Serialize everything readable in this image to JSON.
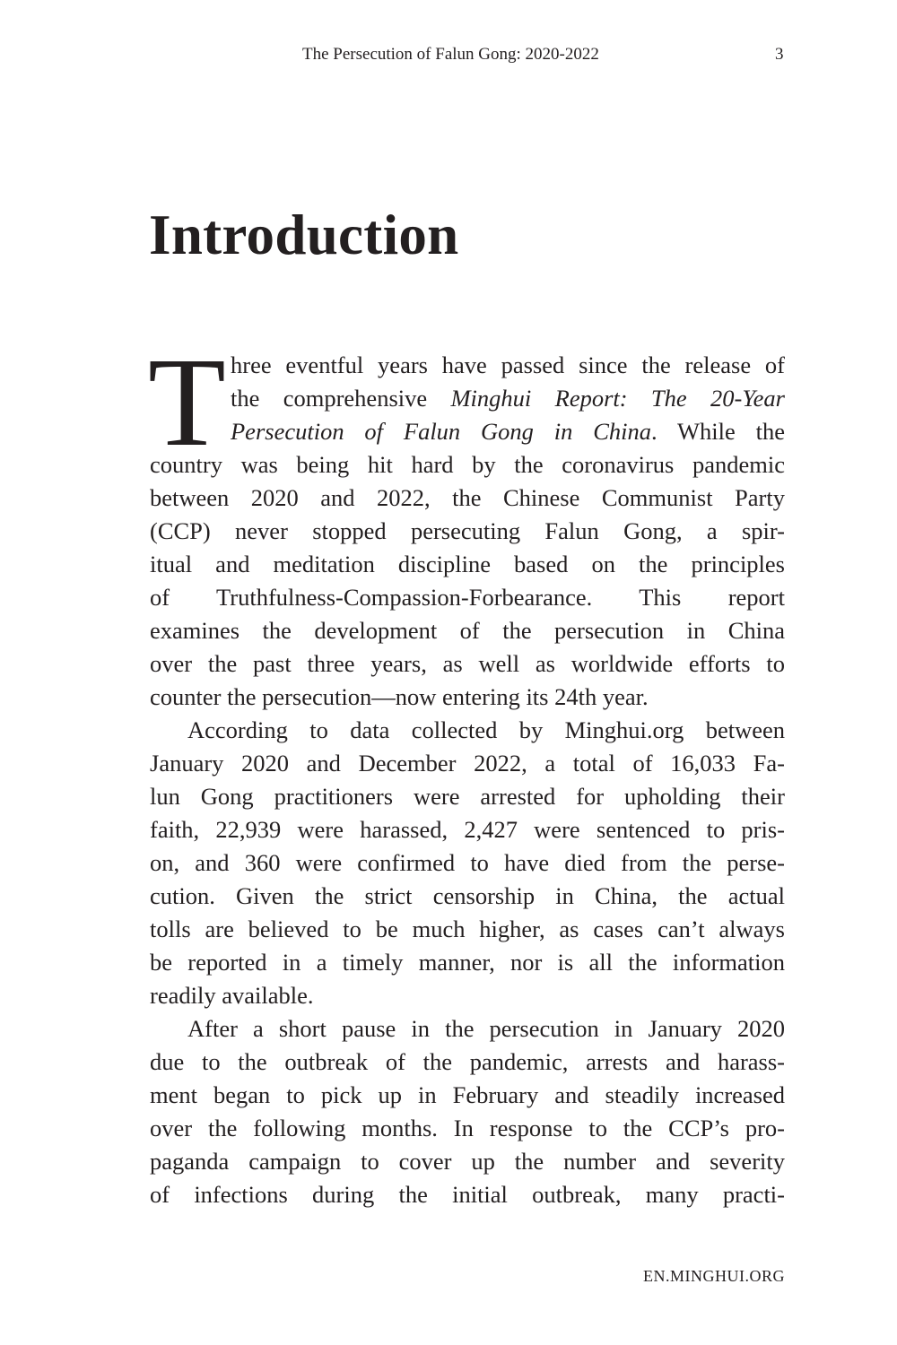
{
  "running_head": {
    "title": "The Persecution of Falun Gong: 2020-2022",
    "page_number": "3"
  },
  "heading": "Introduction",
  "drop_cap": "T",
  "paragraphs": [
    {
      "indent": false,
      "dropcap_lines": 3,
      "lines": [
        [
          [
            "hree eventful years have passed since the release of",
            false
          ]
        ],
        [
          [
            "the comprehensive ",
            false
          ],
          [
            "Minghui Report: The 20-Year",
            true
          ]
        ],
        [
          [
            "Persecution of Falun Gong in China",
            true
          ],
          [
            ". While the",
            false
          ]
        ],
        [
          [
            "country was being hit hard by the coronavirus pandemic",
            false
          ]
        ],
        [
          [
            "between 2020 and 2022, the Chinese Communist Party",
            false
          ]
        ],
        [
          [
            "(CCP) never stopped persecuting Falun Gong, a spir-",
            false
          ]
        ],
        [
          [
            "itual and meditation discipline based on the principles",
            false
          ]
        ],
        [
          [
            "of Truthfulness-Compassion-Forbearance. This report",
            false
          ]
        ],
        [
          [
            "examines the development of the persecution in China",
            false
          ]
        ],
        [
          [
            "over the past three years, as well as worldwide efforts to",
            false
          ]
        ],
        [
          [
            "counter the persecution—now entering its 24th year.",
            false
          ]
        ]
      ],
      "ends": true
    },
    {
      "indent": true,
      "dropcap_lines": 0,
      "lines": [
        [
          [
            "According to data collected by Minghui.org between",
            false
          ]
        ],
        [
          [
            "January 2020 and December 2022, a total of 16,033 Fa-",
            false
          ]
        ],
        [
          [
            "lun Gong practitioners were arrested for upholding their",
            false
          ]
        ],
        [
          [
            "faith, 22,939 were harassed, 2,427 were sentenced to pris-",
            false
          ]
        ],
        [
          [
            "on, and 360 were confirmed to have died from the perse-",
            false
          ]
        ],
        [
          [
            "cution. Given the strict censorship in China, the actual",
            false
          ]
        ],
        [
          [
            "tolls are believed to be much higher, as cases can’t always",
            false
          ]
        ],
        [
          [
            "be reported in a timely manner, nor is all the information",
            false
          ]
        ],
        [
          [
            "readily available.",
            false
          ]
        ]
      ],
      "ends": true
    },
    {
      "indent": true,
      "dropcap_lines": 0,
      "lines": [
        [
          [
            "After a short pause in the persecution in January 2020",
            false
          ]
        ],
        [
          [
            "due to the outbreak of the pandemic, arrests and harass-",
            false
          ]
        ],
        [
          [
            "ment began to pick up in February and steadily increased",
            false
          ]
        ],
        [
          [
            "over the following months. In response to the CCP’s pro-",
            false
          ]
        ],
        [
          [
            "paganda campaign to cover up the number and severity",
            false
          ]
        ],
        [
          [
            "of infections during the initial outbreak, many practi-",
            false
          ]
        ]
      ],
      "ends": false
    }
  ],
  "footer": "EN.MINGHUI.ORG"
}
